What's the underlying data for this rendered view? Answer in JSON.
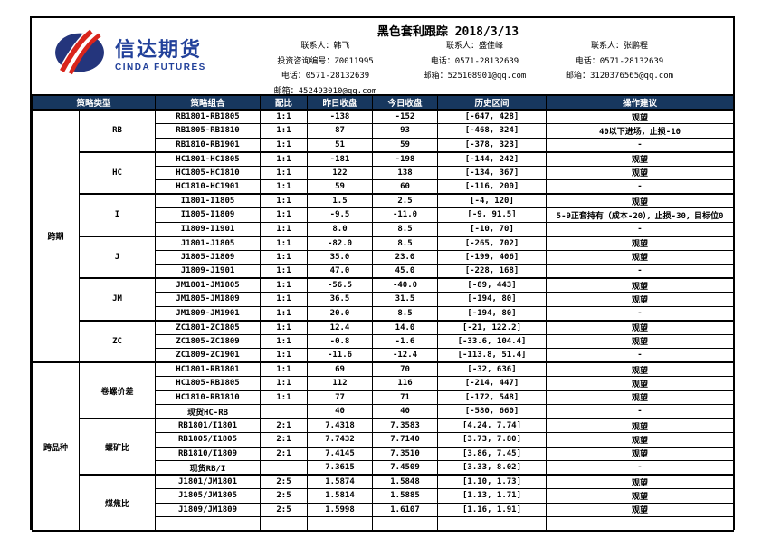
{
  "colors": {
    "header_bg": "#17375e",
    "shade_bg": "#fbe5d6",
    "shade_text": "#8c8c8c",
    "logo_blue": "#21409a",
    "logo_red": "#d9251c"
  },
  "header": {
    "logo_cn": "信达期货",
    "logo_en": "CINDA FUTURES",
    "title": "黑色套利跟踪 2018/3/13"
  },
  "contacts": [
    {
      "lines": [
        "联系人：韩飞",
        "投资咨询编号：Z0011995",
        "电话：0571-28132639",
        "邮箱：452493010@qq.com"
      ]
    },
    {
      "lines": [
        "联系人：盛佳峰",
        "电话：0571-28132639",
        "邮箱：525108901@qq.com"
      ]
    },
    {
      "lines": [
        "联系人：张鹏程",
        "电话：0571-28132639",
        "邮箱：3120376565@qq.com"
      ]
    }
  ],
  "table": {
    "columns": [
      "策略类型",
      "策略组合",
      "配比",
      "昨日收盘",
      "今日收盘",
      "历史区间",
      "操作建议"
    ],
    "sections": [
      {
        "type": "跨期",
        "groups": [
          {
            "name": "RB",
            "shade": true,
            "rows": [
              [
                "RB1801-RB1805",
                "1:1",
                "-138",
                "-152",
                "[-647, 428]",
                "观望"
              ],
              [
                "RB1805-RB1810",
                "1:1",
                "87",
                "93",
                "[-468, 324]",
                "40以下进场，止损-10"
              ],
              [
                "RB1810-RB1901",
                "1:1",
                "51",
                "59",
                "[-378, 323]",
                "-"
              ]
            ]
          },
          {
            "name": "HC",
            "shade": false,
            "rows": [
              [
                "HC1801-HC1805",
                "1:1",
                "-181",
                "-198",
                "[-144, 242]",
                "观望"
              ],
              [
                "HC1805-HC1810",
                "1:1",
                "122",
                "138",
                "[-134, 367]",
                "观望"
              ],
              [
                "HC1810-HC1901",
                "1:1",
                "59",
                "60",
                "[-116, 200]",
                "-"
              ]
            ]
          },
          {
            "name": "I",
            "shade": true,
            "rows": [
              [
                "I1801-I1805",
                "1:1",
                "1.5",
                "2.5",
                "[-4, 120]",
                "观望"
              ],
              [
                "I1805-I1809",
                "1:1",
                "-9.5",
                "-11.0",
                "[-9, 91.5]",
                "5-9正套持有（成本-20），止损-30，目标位0"
              ],
              [
                "I1809-I1901",
                "1:1",
                "8.0",
                "8.5",
                "[-10, 70]",
                "-"
              ]
            ]
          },
          {
            "name": "J",
            "shade": false,
            "rows": [
              [
                "J1801-J1805",
                "1:1",
                "-82.0",
                "8.5",
                "[-265, 702]",
                "观望"
              ],
              [
                "J1805-J1809",
                "1:1",
                "35.0",
                "23.0",
                "[-199, 406]",
                "观望"
              ],
              [
                "J1809-J1901",
                "1:1",
                "47.0",
                "45.0",
                "[-228, 168]",
                "-"
              ]
            ]
          },
          {
            "name": "JM",
            "shade": true,
            "rows": [
              [
                "JM1801-JM1805",
                "1:1",
                "-56.5",
                "-40.0",
                "[-89, 443]",
                "观望"
              ],
              [
                "JM1805-JM1809",
                "1:1",
                "36.5",
                "31.5",
                "[-194, 80]",
                "观望"
              ],
              [
                "JM1809-JM1901",
                "1:1",
                "20.0",
                "8.5",
                "[-194, 80]",
                "-"
              ]
            ]
          },
          {
            "name": "ZC",
            "shade": false,
            "rows": [
              [
                "ZC1801-ZC1805",
                "1:1",
                "12.4",
                "14.0",
                "[-21, 122.2]",
                "观望"
              ],
              [
                "ZC1805-ZC1809",
                "1:1",
                "-0.8",
                "-1.6",
                "[-33.6, 104.4]",
                "观望"
              ],
              [
                "ZC1809-ZC1901",
                "1:1",
                "-11.6",
                "-12.4",
                "[-113.8, 51.4]",
                "-"
              ]
            ]
          }
        ]
      },
      {
        "type": "跨品种",
        "groups": [
          {
            "name": "卷螺价差",
            "shade": true,
            "rows": [
              [
                "HC1801-RB1801",
                "1:1",
                "69",
                "70",
                "[-32, 636]",
                "观望"
              ],
              [
                "HC1805-RB1805",
                "1:1",
                "112",
                "116",
                "[-214, 447]",
                "观望"
              ],
              [
                "HC1810-RB1810",
                "1:1",
                "77",
                "71",
                "[-172, 548]",
                "观望"
              ],
              [
                "现货HC-RB",
                "",
                "40",
                "40",
                "[-580, 660]",
                "-"
              ]
            ]
          },
          {
            "name": "螺矿比",
            "shade": false,
            "rows": [
              [
                "RB1801/I1801",
                "2:1",
                "7.4318",
                "7.3583",
                "[4.24, 7.74]",
                "观望"
              ],
              [
                "RB1805/I1805",
                "2:1",
                "7.7432",
                "7.7140",
                "[3.73, 7.80]",
                "观望"
              ],
              [
                "RB1810/I1809",
                "2:1",
                "7.4145",
                "7.3510",
                "[3.86, 7.45]",
                "观望"
              ],
              [
                "现货RB/I",
                "",
                "7.3615",
                "7.4509",
                "[3.33, 8.02]",
                "-"
              ]
            ]
          },
          {
            "name": "煤焦比",
            "shade": true,
            "rows": [
              [
                "J1801/JM1801",
                "2:5",
                "1.5874",
                "1.5848",
                "[1.10, 1.73]",
                "观望"
              ],
              [
                "J1805/JM1805",
                "2:5",
                "1.5814",
                "1.5885",
                "[1.13, 1.71]",
                "观望"
              ],
              [
                "J1809/JM1809",
                "2:5",
                "1.5998",
                "1.6107",
                "[1.16, 1.91]",
                "观望"
              ],
              [
                "",
                "",
                "",
                "",
                "",
                ""
              ]
            ]
          }
        ]
      }
    ]
  }
}
